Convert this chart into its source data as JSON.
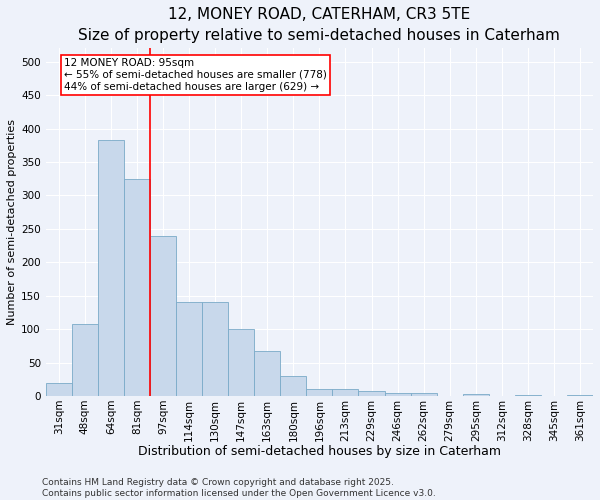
{
  "title": "12, MONEY ROAD, CATERHAM, CR3 5TE",
  "subtitle": "Size of property relative to semi-detached houses in Caterham",
  "xlabel": "Distribution of semi-detached houses by size in Caterham",
  "ylabel": "Number of semi-detached properties",
  "categories": [
    "31sqm",
    "48sqm",
    "64sqm",
    "81sqm",
    "97sqm",
    "114sqm",
    "130sqm",
    "147sqm",
    "163sqm",
    "180sqm",
    "196sqm",
    "213sqm",
    "229sqm",
    "246sqm",
    "262sqm",
    "279sqm",
    "295sqm",
    "312sqm",
    "328sqm",
    "345sqm",
    "361sqm"
  ],
  "values": [
    20,
    108,
    383,
    325,
    240,
    140,
    140,
    100,
    68,
    30,
    10,
    10,
    7,
    5,
    5,
    0,
    3,
    0,
    2,
    0,
    2
  ],
  "bar_color": "#c8d8eb",
  "bar_edge_color": "#7aaac8",
  "property_line_index": 4,
  "property_label": "12 MONEY ROAD: 95sqm",
  "annotation_line1": "← 55% of semi-detached houses are smaller (778)",
  "annotation_line2": "44% of semi-detached houses are larger (629) →",
  "annotation_box_color": "white",
  "annotation_box_edge_color": "red",
  "property_line_color": "red",
  "ylim": [
    0,
    520
  ],
  "yticks": [
    0,
    50,
    100,
    150,
    200,
    250,
    300,
    350,
    400,
    450,
    500
  ],
  "title_fontsize": 11,
  "xlabel_fontsize": 9,
  "ylabel_fontsize": 8,
  "tick_fontsize": 7.5,
  "annotation_fontsize": 7.5,
  "footer_line1": "Contains HM Land Registry data © Crown copyright and database right 2025.",
  "footer_line2": "Contains public sector information licensed under the Open Government Licence v3.0.",
  "footer_fontsize": 6.5,
  "background_color": "#eef2fa"
}
